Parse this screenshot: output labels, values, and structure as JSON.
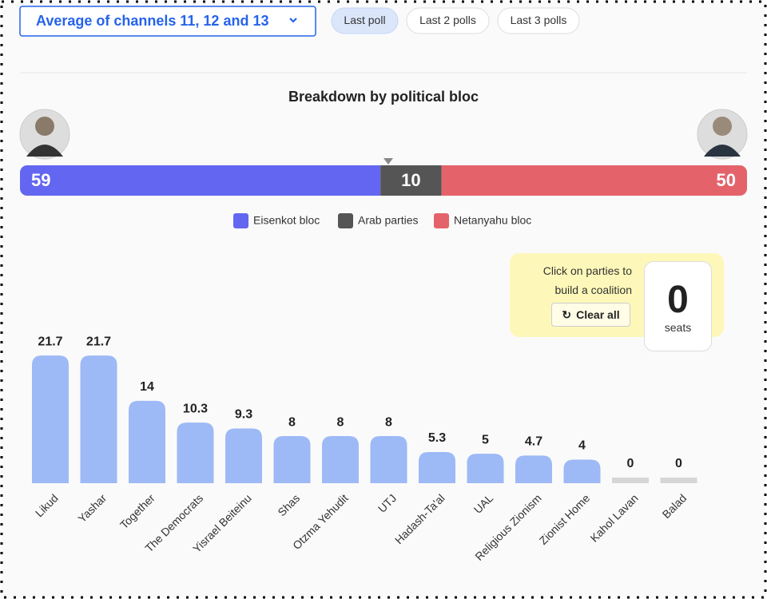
{
  "controls": {
    "dropdown": "Average of channels 11, 12 and 13",
    "tabs": [
      "Last poll",
      "Last 2 polls",
      "Last 3 polls"
    ]
  },
  "chart_data": [
    {
      "type": "stacked-bar",
      "title": "Breakdown by political bloc",
      "series": [
        {
          "name": "Eisenkot bloc",
          "color": "#6366f1",
          "values": [
            59
          ]
        },
        {
          "name": "Arab parties",
          "color": "#555555",
          "values": [
            10
          ]
        },
        {
          "name": "Netanyahu bloc",
          "color": "#e4636a",
          "values": [
            50
          ]
        }
      ]
    },
    {
      "type": "bar",
      "categories": [
        "Likud",
        "Yashar",
        "Together",
        "The Democrats",
        "Yisrael Beiteinu",
        "Shas",
        "Otzma Yehudit",
        "UTJ",
        "Hadash-Ta'al",
        "UAL",
        "Religious Zionism",
        "Zionist Home",
        "Kahol Lavan",
        "Balad"
      ],
      "values": [
        21.7,
        21.7,
        14,
        10.3,
        9.3,
        8,
        8,
        8,
        5.3,
        5,
        4.7,
        4,
        0,
        0
      ],
      "color": "#9db9f6",
      "empty_color": "#d6d6d6"
    }
  ],
  "coalition": {
    "prompt": "Click on parties to build a coalition",
    "button": "Clear all",
    "seats": 0,
    "unit": "seats"
  }
}
